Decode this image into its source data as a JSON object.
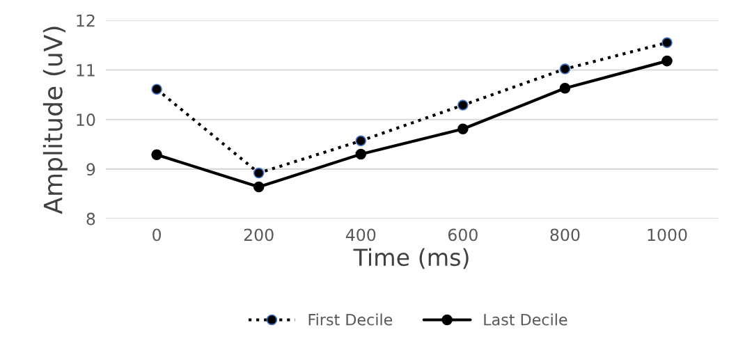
{
  "chart_data": {
    "type": "line",
    "xlabel": "Time (ms)",
    "ylabel": "Amplitude (uV)",
    "categories": [
      "0",
      "200",
      "400",
      "600",
      "800",
      "1000"
    ],
    "series": [
      {
        "name": "First Decile",
        "color": "#000000",
        "line_style": "dotted",
        "values": [
          10.61,
          8.92,
          9.57,
          10.29,
          11.02,
          11.55
        ]
      },
      {
        "name": "Last Decile",
        "color": "#000000",
        "line_style": "solid",
        "values": [
          9.29,
          8.64,
          9.3,
          9.81,
          10.63,
          11.18
        ]
      }
    ],
    "ylim": [
      8,
      12
    ],
    "yticks": [
      8,
      9,
      10,
      11,
      12
    ],
    "grid": "y",
    "legend": "bottom",
    "marker": "circle"
  }
}
